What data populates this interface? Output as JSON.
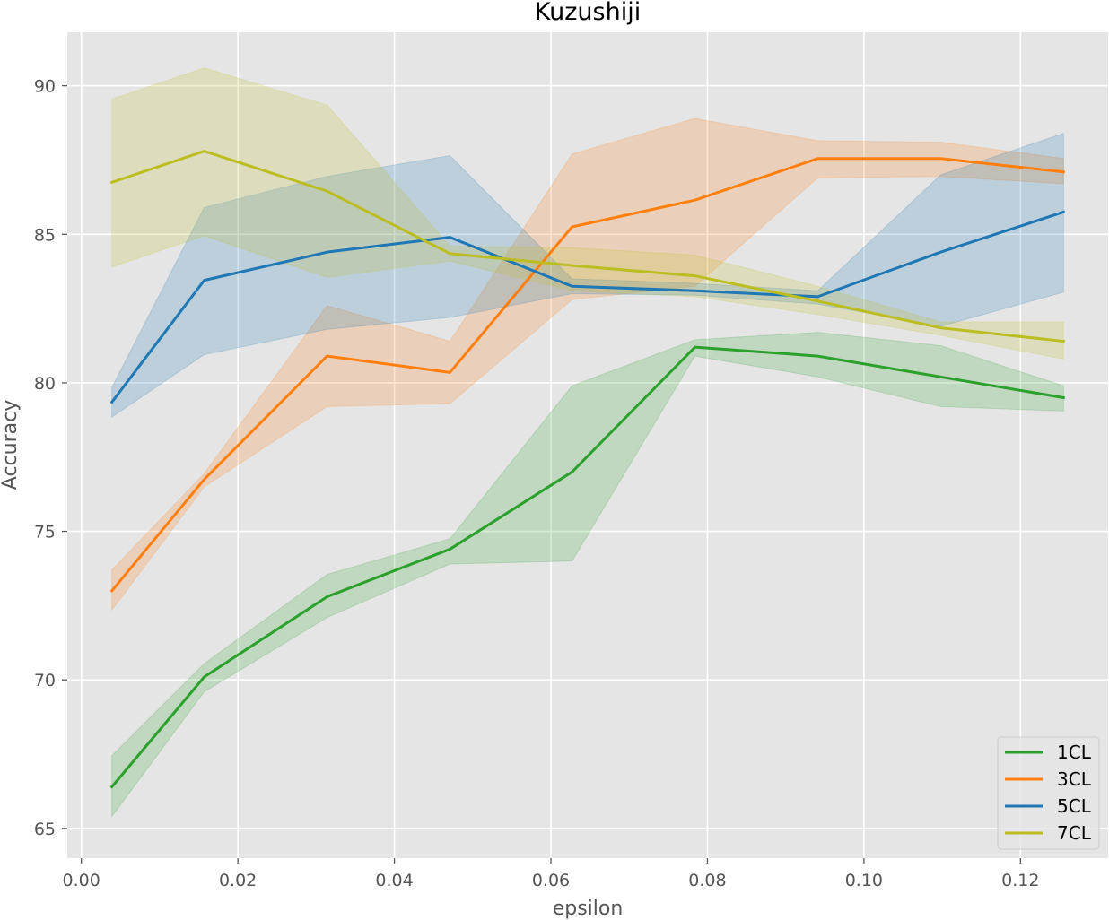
{
  "chart_data": {
    "type": "line",
    "title": "Kuzushiji",
    "xlabel": "epsilon",
    "ylabel": "Accuracy",
    "xlim": [
      -0.0018,
      0.1312
    ],
    "ylim": [
      64.0,
      91.8
    ],
    "x_ticks": [
      0.0,
      0.02,
      0.04,
      0.06,
      0.08,
      0.1,
      0.12
    ],
    "x_tick_labels": [
      "0.00",
      "0.02",
      "0.04",
      "0.06",
      "0.08",
      "0.10",
      "0.12"
    ],
    "y_ticks": [
      65,
      70,
      75,
      80,
      85,
      90
    ],
    "y_tick_labels": [
      "65",
      "70",
      "75",
      "80",
      "85",
      "90"
    ],
    "grid": true,
    "legend_position": "bottom-right",
    "x": [
      0.0039,
      0.0157,
      0.0314,
      0.0471,
      0.0627,
      0.0784,
      0.0941,
      0.1098,
      0.1255
    ],
    "series": [
      {
        "name": "1CL",
        "color": "#2ca02c",
        "values": [
          66.4,
          70.1,
          72.8,
          74.4,
          77.0,
          81.2,
          80.9,
          80.2,
          79.5
        ],
        "lower": [
          65.4,
          69.6,
          72.1,
          73.9,
          74.0,
          80.9,
          80.2,
          79.2,
          79.05
        ],
        "upper": [
          67.45,
          70.55,
          73.55,
          74.75,
          79.9,
          81.45,
          81.7,
          81.25,
          79.9
        ]
      },
      {
        "name": "3CL",
        "color": "#ff7f0e",
        "values": [
          73.0,
          76.75,
          80.9,
          80.35,
          85.25,
          86.15,
          87.55,
          87.55,
          87.1
        ],
        "lower": [
          72.35,
          76.5,
          79.2,
          79.3,
          82.8,
          83.25,
          86.9,
          86.95,
          86.7
        ],
        "upper": [
          73.7,
          76.95,
          82.6,
          81.4,
          87.7,
          88.9,
          88.15,
          88.1,
          87.55
        ]
      },
      {
        "name": "5CL",
        "color": "#1f77b4",
        "values": [
          79.35,
          83.45,
          84.4,
          84.9,
          83.25,
          83.1,
          82.9,
          84.4,
          85.75
        ],
        "lower": [
          78.85,
          80.95,
          81.8,
          82.2,
          83.0,
          82.95,
          82.65,
          81.9,
          83.05
        ],
        "upper": [
          79.85,
          85.9,
          86.95,
          87.65,
          83.5,
          83.35,
          83.1,
          87.0,
          88.4
        ]
      },
      {
        "name": "7CL",
        "color": "#bcbd22",
        "values": [
          86.75,
          87.8,
          86.45,
          84.35,
          83.95,
          83.6,
          82.75,
          81.85,
          81.4
        ],
        "lower": [
          83.9,
          84.95,
          83.55,
          84.1,
          83.1,
          82.9,
          82.3,
          81.6,
          80.8
        ],
        "upper": [
          89.55,
          90.6,
          89.35,
          84.6,
          84.55,
          84.3,
          83.25,
          82.05,
          82.05
        ]
      }
    ],
    "legend_order": [
      0,
      1,
      2,
      3
    ]
  }
}
